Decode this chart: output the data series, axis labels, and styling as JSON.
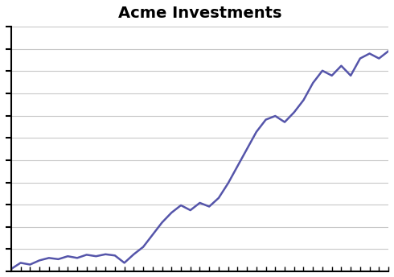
{
  "title": "Acme Investments",
  "title_fontsize": 14,
  "title_fontweight": "bold",
  "line_color": "#5555aa",
  "line_width": 1.8,
  "background_color": "#ffffff",
  "grid_color": "#c8c8c8",
  "x_values": [
    0,
    1,
    2,
    3,
    4,
    5,
    6,
    7,
    8,
    9,
    10,
    11,
    12,
    13,
    14,
    15,
    16,
    17,
    18,
    19,
    20,
    21,
    22,
    23,
    24,
    25,
    26,
    27,
    28,
    29,
    30,
    31,
    32,
    33,
    34,
    35,
    36,
    37,
    38,
    39,
    40
  ],
  "y_values": [
    1,
    3.5,
    2.8,
    4.5,
    5.5,
    5.0,
    6.2,
    5.5,
    6.8,
    6.2,
    7.0,
    6.5,
    3.5,
    7.0,
    10.0,
    15.0,
    20.0,
    24.0,
    27.0,
    25.0,
    28.0,
    26.5,
    30.0,
    36.0,
    43.0,
    50.0,
    57.0,
    62.0,
    63.5,
    61.0,
    65.0,
    70.0,
    77.0,
    82.0,
    80.0,
    84.0,
    80.0,
    87.0,
    89.0,
    87.0,
    90.0
  ],
  "ylim": [
    0,
    100
  ],
  "xlim": [
    0,
    40
  ],
  "ytick_values": [
    0,
    9.09,
    18.18,
    27.27,
    36.36,
    45.45,
    54.54,
    63.63,
    72.72,
    81.81,
    90.9,
    100
  ],
  "num_xticks": 41
}
